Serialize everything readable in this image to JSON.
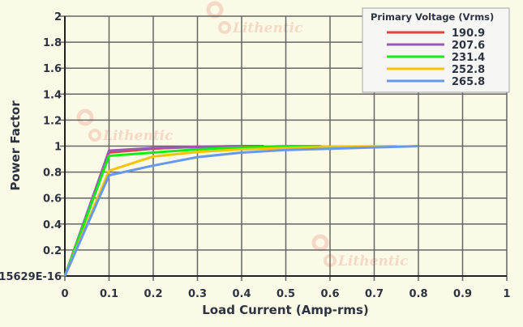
{
  "chart_data": {
    "type": "line",
    "title": "",
    "xlabel": "Load Current (Amp-rms)",
    "ylabel": "Power Factor",
    "xlim": [
      0,
      1
    ],
    "ylim": [
      0,
      2
    ],
    "xticks": [
      "0",
      "0.1",
      "0.2",
      "0.3",
      "0.4",
      "0.5",
      "0.6",
      "0.7",
      "0.8",
      "0.9",
      "1"
    ],
    "yticks": [
      "15629E-16",
      "0.2",
      "0.4",
      "0.6",
      "0.8",
      "1",
      "1.2",
      "1.4",
      "1.6",
      "1.8",
      "2"
    ],
    "grid": true,
    "legend": {
      "title": "Primary Voltage (Vrms)",
      "placement": "top-right"
    },
    "watermark": "Lithentic",
    "series": [
      {
        "name": "190.9",
        "color": "#e0443a",
        "x": [
          0,
          0.1,
          0.2,
          0.3,
          0.4,
          0.45
        ],
        "y": [
          0,
          0.95,
          0.98,
          0.995,
          1.0,
          1.0
        ]
      },
      {
        "name": "207.6",
        "color": "#9b59b6",
        "x": [
          0,
          0.1,
          0.2,
          0.3,
          0.4
        ],
        "y": [
          0,
          0.965,
          0.985,
          0.993,
          1.0
        ]
      },
      {
        "name": "231.4",
        "color": "#11ee11",
        "x": [
          0,
          0.1,
          0.2,
          0.3,
          0.4,
          0.5,
          0.58
        ],
        "y": [
          0,
          0.925,
          0.95,
          0.975,
          0.99,
          1.0,
          1.0
        ]
      },
      {
        "name": "252.8",
        "color": "#f5c400",
        "x": [
          0,
          0.1,
          0.2,
          0.3,
          0.4,
          0.5,
          0.6,
          0.75
        ],
        "y": [
          0,
          0.81,
          0.92,
          0.955,
          0.975,
          0.985,
          0.995,
          1.0
        ]
      },
      {
        "name": "265.8",
        "color": "#6699ee",
        "x": [
          0,
          0.1,
          0.2,
          0.3,
          0.4,
          0.5,
          0.6,
          0.7,
          0.8
        ],
        "y": [
          0,
          0.775,
          0.85,
          0.915,
          0.95,
          0.97,
          0.98,
          0.99,
          1.0
        ]
      }
    ]
  }
}
